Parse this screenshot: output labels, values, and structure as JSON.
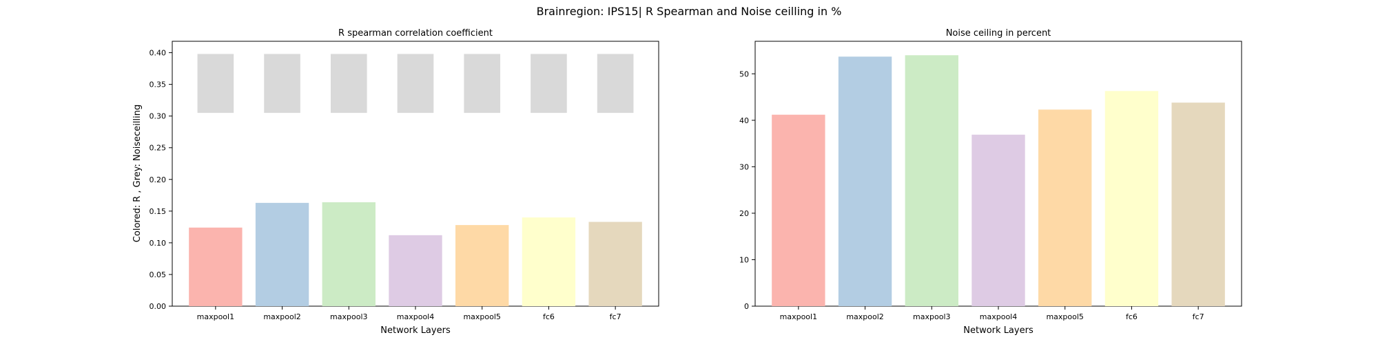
{
  "figure": {
    "suptitle": "Brainregion: IPS15| R Spearman and Noise ceilling in %"
  },
  "chart_data": [
    {
      "type": "bar",
      "title": "R spearman correlation coefficient",
      "xlabel": "Network Layers",
      "ylabel": "Colored: R , Grey: Noiseceilling",
      "categories": [
        "maxpool1",
        "maxpool2",
        "maxpool3",
        "maxpool4",
        "maxpool5",
        "fc6",
        "fc7"
      ],
      "values": [
        0.124,
        0.163,
        0.164,
        0.112,
        0.128,
        0.14,
        0.133
      ],
      "noise_ceiling_range": {
        "lower": 0.305,
        "upper": 0.398
      },
      "ylim": [
        0,
        0.418
      ],
      "yticks": [
        "0.00",
        "0.05",
        "0.10",
        "0.15",
        "0.20",
        "0.25",
        "0.30",
        "0.35",
        "0.40"
      ],
      "bar_colors": [
        "#fbb4ae",
        "#b3cde3",
        "#ccebc5",
        "#decbe4",
        "#fed9a6",
        "#ffffcc",
        "#e5d8bd"
      ],
      "noise_color": "#d9d9d9",
      "grid": false
    },
    {
      "type": "bar",
      "title": "Noise ceiling in percent",
      "xlabel": "Network Layers",
      "ylabel": "",
      "categories": [
        "maxpool1",
        "maxpool2",
        "maxpool3",
        "maxpool4",
        "maxpool5",
        "fc6",
        "fc7"
      ],
      "values": [
        41.2,
        53.7,
        54.0,
        36.9,
        42.3,
        46.3,
        43.8
      ],
      "ylim": [
        0,
        57
      ],
      "yticks": [
        "0",
        "10",
        "20",
        "30",
        "40",
        "50"
      ],
      "bar_colors": [
        "#fbb4ae",
        "#b3cde3",
        "#ccebc5",
        "#decbe4",
        "#fed9a6",
        "#ffffcc",
        "#e5d8bd"
      ],
      "grid": false
    }
  ]
}
